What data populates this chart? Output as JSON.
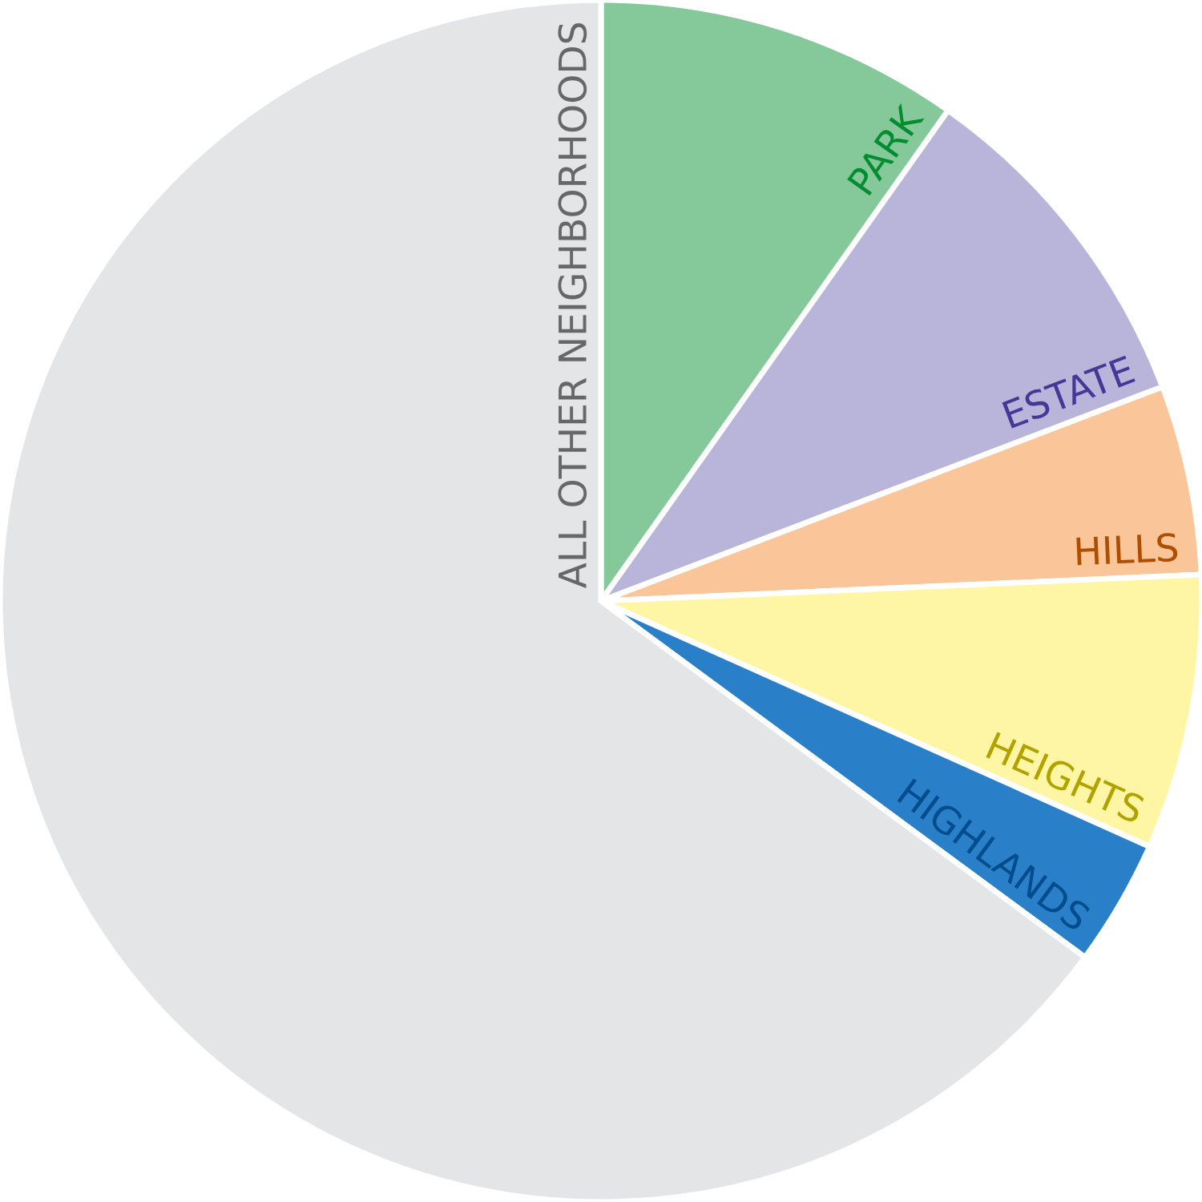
{
  "chart_data": {
    "type": "pie",
    "categories": [
      "PARK",
      "ESTATE",
      "HILLS",
      "HEIGHTS",
      "HIGHLANDS",
      "ALL OTHER NEIGHBORHOODS"
    ],
    "values": [
      9.8,
      9.4,
      5.1,
      7.4,
      3.4,
      64.9
    ],
    "colors": [
      "#85c99b",
      "#b9b4d9",
      "#fbc59a",
      "#fef6a5",
      "#2a80c8",
      "#e4e5e7"
    ]
  }
}
